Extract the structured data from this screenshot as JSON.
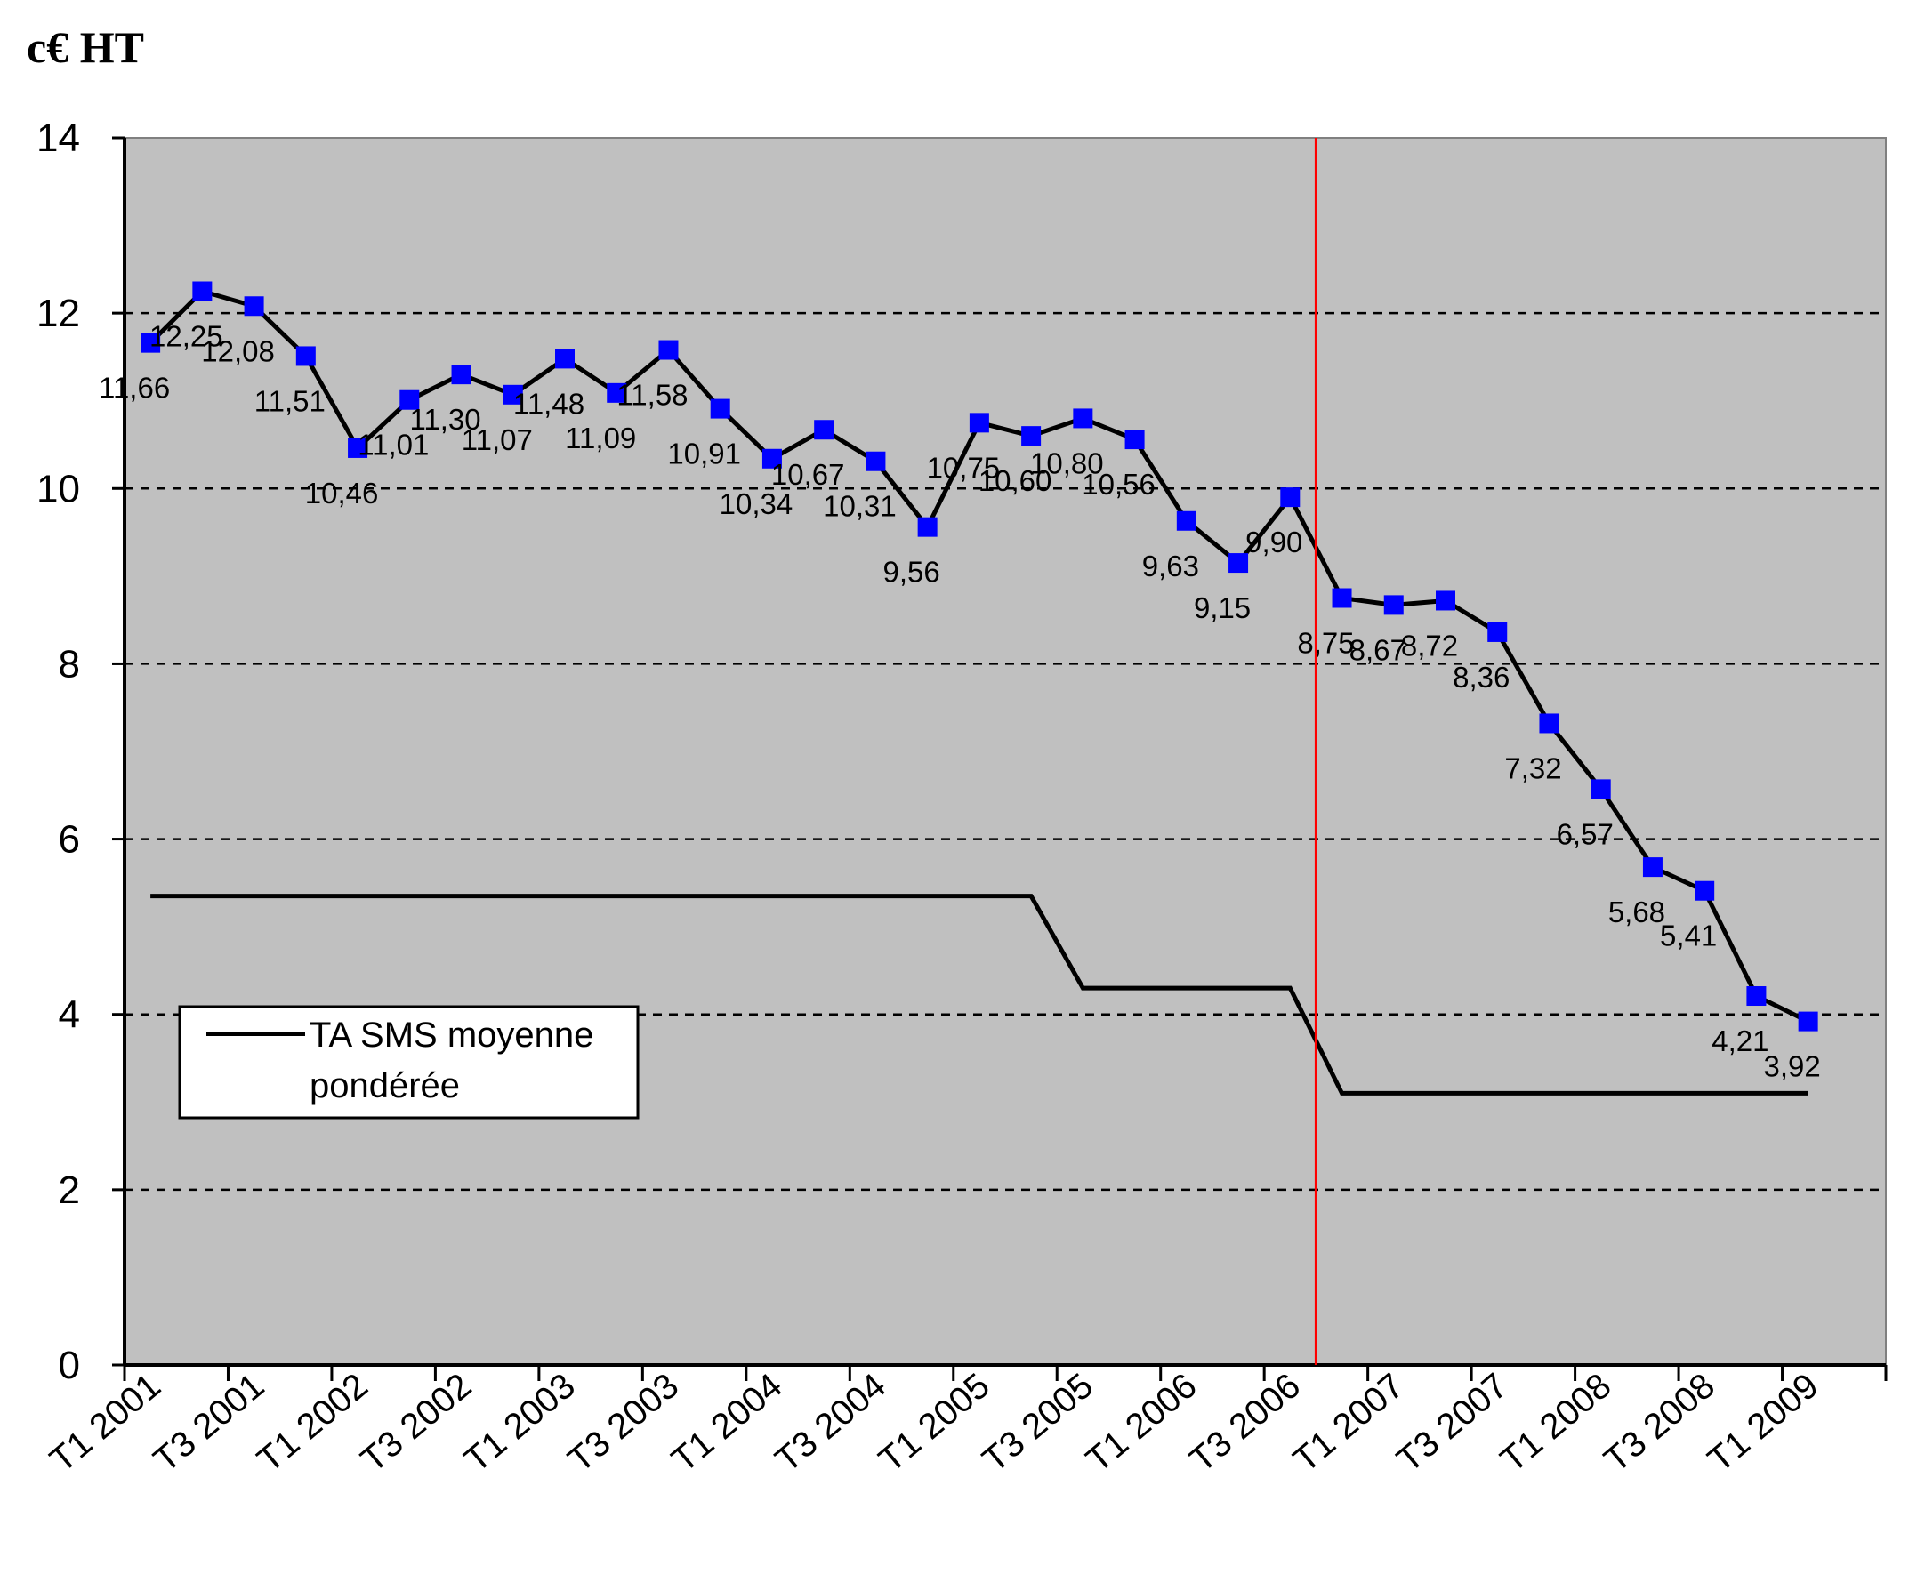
{
  "chart_data": {
    "type": "line",
    "unit_label": "c€ HT",
    "ylim": [
      0,
      14
    ],
    "y_ticks": [
      "0",
      "2",
      "4",
      "6",
      "8",
      "10",
      "12",
      "14"
    ],
    "x_tick_labels": [
      "T1 2001",
      "T3 2001",
      "T1 2002",
      "T3 2002",
      "T1 2003",
      "T3 2003",
      "T1 2004",
      "T3 2004",
      "T1 2005",
      "T3 2005",
      "T1 2006",
      "T3 2006",
      "T1 2007",
      "T3 2007",
      "T1 2008",
      "T3 2008",
      "T1 2009"
    ],
    "grid": "horizontal dashed",
    "plot_background": "#c0c0c0",
    "vertical_marker": {
      "position_after_period": 23,
      "color": "#ff0000"
    },
    "series": [
      {
        "values": [
          11.66,
          12.25,
          12.08,
          11.51,
          10.46,
          11.01,
          11.3,
          11.07,
          11.48,
          11.09,
          11.58,
          10.91,
          10.34,
          10.67,
          10.31,
          9.56,
          10.75,
          10.6,
          10.8,
          10.56,
          9.63,
          9.15,
          9.9,
          8.75,
          8.67,
          8.72,
          8.36,
          7.32,
          6.57,
          5.68,
          5.41,
          4.21,
          3.92
        ],
        "labels": [
          "11,66",
          "12,25",
          "12,08",
          "11,51",
          "10,46",
          "11,01",
          "11,30",
          "11,07",
          "11,48",
          "11,09",
          "11,58",
          "10,91",
          "10,34",
          "10,67",
          "10,31",
          "9,56",
          "10,75",
          "10,60",
          "10,80",
          "10,56",
          "9,63",
          "9,15",
          "9,90",
          "8,75",
          "8,67",
          "8,72",
          "8,36",
          "7,32",
          "6,57",
          "5,68",
          "5,41",
          "4,21",
          "3,92"
        ],
        "color": "#000000",
        "marker_color": "#0000ff"
      },
      {
        "name": "TA SMS moyenne pondérée",
        "values": [
          5.35,
          5.35,
          5.35,
          5.35,
          5.35,
          5.35,
          5.35,
          5.35,
          5.35,
          5.35,
          5.35,
          5.35,
          5.35,
          5.35,
          5.35,
          5.35,
          5.35,
          5.35,
          4.3,
          4.3,
          4.3,
          4.3,
          4.3,
          3.1,
          3.1,
          3.1,
          3.1,
          3.1,
          3.1,
          3.1,
          3.1,
          3.1,
          3.1
        ],
        "color": "#000000"
      }
    ],
    "legend": {
      "position": "bottom-left",
      "lines": [
        "TA SMS moyenne",
        "pondérée"
      ]
    }
  }
}
